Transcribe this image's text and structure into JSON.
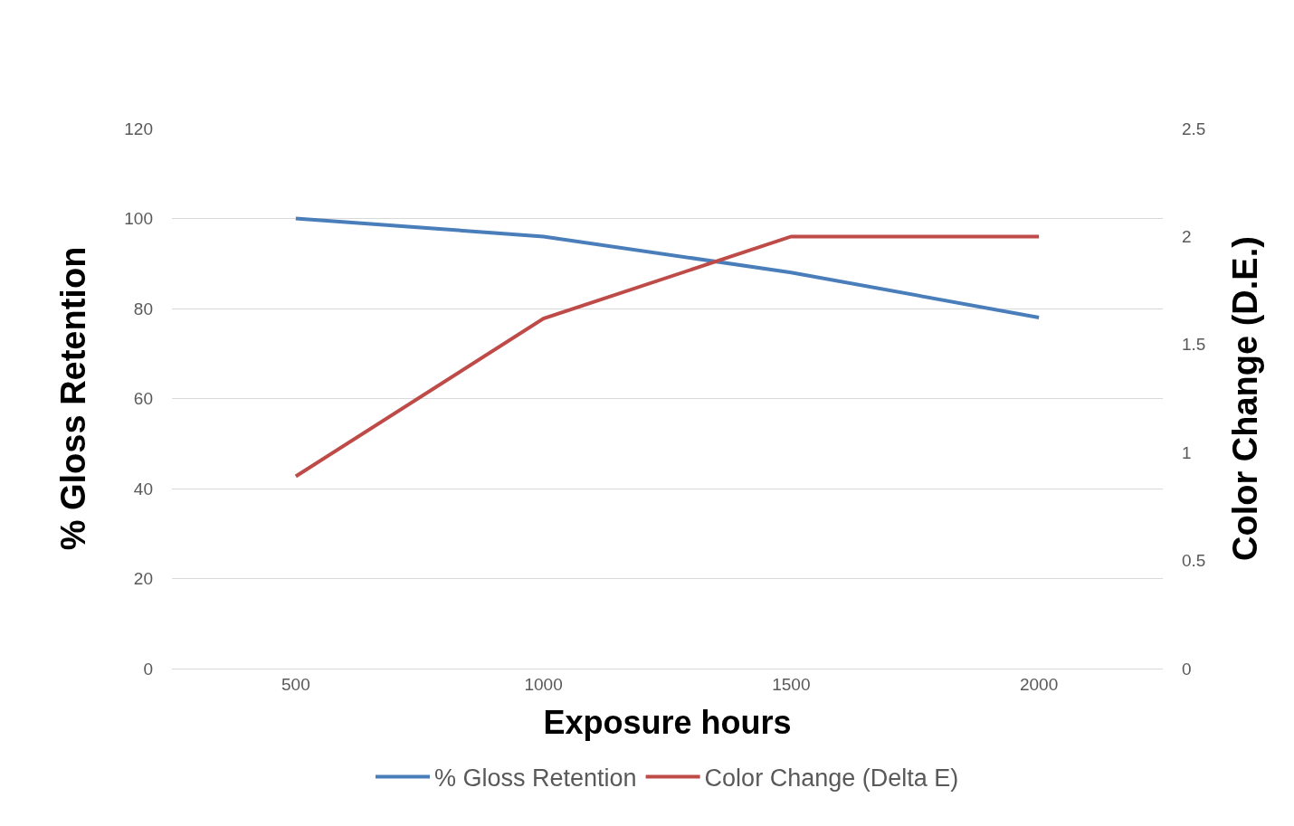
{
  "chart_data": {
    "type": "line",
    "xlabel": "Exposure hours",
    "ylabel": "% Gloss Retention",
    "y2label": "Color Change (D.E.)",
    "categories": [
      "500",
      "1000",
      "1500",
      "2000"
    ],
    "series": [
      {
        "name": "% Gloss Retention",
        "color": "#4a7ebb",
        "values": [
          100,
          96,
          88,
          78
        ]
      },
      {
        "name": "Color Change (Delta E)",
        "color": "#be4b48",
        "values": [
          0.89,
          1.62,
          2.0,
          2.0
        ],
        "axis": "y2"
      }
    ],
    "ylim": [
      0,
      120
    ],
    "yticks": [
      0,
      20,
      40,
      60,
      80,
      100,
      120
    ],
    "y2lim": [
      0,
      2.5
    ],
    "y2ticks": [
      0,
      0.5,
      1,
      1.5,
      2,
      2.5
    ],
    "grid": "y",
    "legend": "bottom",
    "marker": "none",
    "line_style": "solid"
  }
}
